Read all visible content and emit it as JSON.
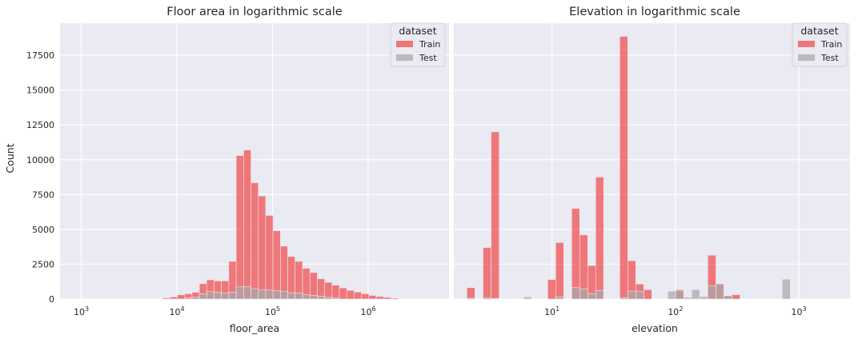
{
  "chart_data": [
    {
      "type": "bar",
      "title": "Floor area in logarithmic scale",
      "xlabel": "floor_area",
      "ylabel": "Count",
      "xscale": "log",
      "xlim": [
        600,
        7000000
      ],
      "ylim": [
        0,
        19800
      ],
      "grid": true,
      "legend": {
        "title": "dataset",
        "placement": "top-right"
      },
      "xticks": [
        {
          "base": "10",
          "exp": "3",
          "value": 1000
        },
        {
          "base": "10",
          "exp": "4",
          "value": 10000
        },
        {
          "base": "10",
          "exp": "5",
          "value": 100000
        },
        {
          "base": "10",
          "exp": "6",
          "value": 1000000
        }
      ],
      "yticks": [
        0,
        2500,
        5000,
        7500,
        10000,
        12500,
        15000,
        17500
      ],
      "series": [
        {
          "name": "Train",
          "color": "#f05050",
          "bins": [
            {
              "x0": 7100,
              "x1": 8500,
              "value": 80
            },
            {
              "x0": 8500,
              "x1": 10150,
              "value": 150
            },
            {
              "x0": 10150,
              "x1": 12100,
              "value": 300
            },
            {
              "x0": 12100,
              "x1": 14400,
              "value": 380
            },
            {
              "x0": 14400,
              "x1": 17200,
              "value": 480
            },
            {
              "x0": 17200,
              "x1": 20500,
              "value": 1100
            },
            {
              "x0": 20500,
              "x1": 24500,
              "value": 1380
            },
            {
              "x0": 24500,
              "x1": 29200,
              "value": 1300
            },
            {
              "x0": 29200,
              "x1": 34900,
              "value": 1300
            },
            {
              "x0": 34900,
              "x1": 41700,
              "value": 2700
            },
            {
              "x0": 41700,
              "x1": 49800,
              "value": 10300
            },
            {
              "x0": 49800,
              "x1": 59500,
              "value": 10700
            },
            {
              "x0": 59500,
              "x1": 71000,
              "value": 8350
            },
            {
              "x0": 71000,
              "x1": 84700,
              "value": 7400
            },
            {
              "x0": 84700,
              "x1": 101200,
              "value": 6000
            },
            {
              "x0": 101200,
              "x1": 121000,
              "value": 4900
            },
            {
              "x0": 121000,
              "x1": 144000,
              "value": 3800
            },
            {
              "x0": 144000,
              "x1": 172000,
              "value": 3050
            },
            {
              "x0": 172000,
              "x1": 206000,
              "value": 2700
            },
            {
              "x0": 206000,
              "x1": 246000,
              "value": 2200
            },
            {
              "x0": 246000,
              "x1": 294000,
              "value": 1900
            },
            {
              "x0": 294000,
              "x1": 351000,
              "value": 1450
            },
            {
              "x0": 351000,
              "x1": 419000,
              "value": 1200
            },
            {
              "x0": 419000,
              "x1": 500000,
              "value": 1000
            },
            {
              "x0": 500000,
              "x1": 597000,
              "value": 800
            },
            {
              "x0": 597000,
              "x1": 713000,
              "value": 620
            },
            {
              "x0": 713000,
              "x1": 851000,
              "value": 500
            },
            {
              "x0": 851000,
              "x1": 1017000,
              "value": 380
            },
            {
              "x0": 1017000,
              "x1": 1214000,
              "value": 260
            },
            {
              "x0": 1214000,
              "x1": 1450000,
              "value": 180
            },
            {
              "x0": 1450000,
              "x1": 1730000,
              "value": 120
            },
            {
              "x0": 1730000,
              "x1": 2070000,
              "value": 70
            }
          ]
        },
        {
          "name": "Test",
          "color": "#a9a9a9",
          "bins": [
            {
              "x0": 12100,
              "x1": 14400,
              "value": 80
            },
            {
              "x0": 14400,
              "x1": 17200,
              "value": 150
            },
            {
              "x0": 17200,
              "x1": 20500,
              "value": 370
            },
            {
              "x0": 20500,
              "x1": 24500,
              "value": 530
            },
            {
              "x0": 24500,
              "x1": 29200,
              "value": 500
            },
            {
              "x0": 29200,
              "x1": 34900,
              "value": 420
            },
            {
              "x0": 34900,
              "x1": 41700,
              "value": 500
            },
            {
              "x0": 41700,
              "x1": 49800,
              "value": 870
            },
            {
              "x0": 49800,
              "x1": 59500,
              "value": 880
            },
            {
              "x0": 59500,
              "x1": 71000,
              "value": 750
            },
            {
              "x0": 71000,
              "x1": 84700,
              "value": 650
            },
            {
              "x0": 84700,
              "x1": 101200,
              "value": 650
            },
            {
              "x0": 101200,
              "x1": 121000,
              "value": 600
            },
            {
              "x0": 121000,
              "x1": 144000,
              "value": 560
            },
            {
              "x0": 144000,
              "x1": 172000,
              "value": 450
            },
            {
              "x0": 172000,
              "x1": 206000,
              "value": 420
            },
            {
              "x0": 206000,
              "x1": 246000,
              "value": 320
            },
            {
              "x0": 246000,
              "x1": 294000,
              "value": 260
            },
            {
              "x0": 294000,
              "x1": 351000,
              "value": 200
            },
            {
              "x0": 351000,
              "x1": 419000,
              "value": 120
            },
            {
              "x0": 419000,
              "x1": 500000,
              "value": 80
            }
          ]
        }
      ]
    },
    {
      "type": "bar",
      "title": "Elevation in logarithmic scale",
      "xlabel": "elevation",
      "ylabel": "",
      "xscale": "log",
      "xlim": [
        1.6,
        2600
      ],
      "ylim": [
        0,
        19800
      ],
      "grid": true,
      "legend": {
        "title": "dataset",
        "placement": "top-right"
      },
      "xticks": [
        {
          "base": "10",
          "exp": "1",
          "value": 10
        },
        {
          "base": "10",
          "exp": "2",
          "value": 100
        },
        {
          "base": "10",
          "exp": "3",
          "value": 1000
        }
      ],
      "yticks": [
        0,
        2500,
        5000,
        7500,
        10000,
        12500,
        15000,
        17500
      ],
      "series": [
        {
          "name": "Train",
          "color": "#f05050",
          "bins": [
            {
              "x0": 2.04,
              "x1": 2.37,
              "value": 820
            },
            {
              "x0": 2.76,
              "x1": 3.21,
              "value": 3700
            },
            {
              "x0": 3.21,
              "x1": 3.73,
              "value": 12000
            },
            {
              "x0": 9.24,
              "x1": 10.71,
              "value": 1400
            },
            {
              "x0": 10.71,
              "x1": 12.44,
              "value": 4050
            },
            {
              "x0": 14.44,
              "x1": 16.76,
              "value": 6500
            },
            {
              "x0": 16.76,
              "x1": 19.46,
              "value": 4600
            },
            {
              "x0": 19.46,
              "x1": 22.6,
              "value": 2400
            },
            {
              "x0": 22.6,
              "x1": 26.2,
              "value": 8750
            },
            {
              "x0": 35.4,
              "x1": 41.1,
              "value": 18850
            },
            {
              "x0": 41.1,
              "x1": 47.7,
              "value": 2750
            },
            {
              "x0": 47.7,
              "x1": 55.4,
              "value": 1080
            },
            {
              "x0": 55.4,
              "x1": 64.4,
              "value": 670
            },
            {
              "x0": 100.6,
              "x1": 116.8,
              "value": 680
            },
            {
              "x0": 183,
              "x1": 213,
              "value": 3150
            },
            {
              "x0": 213,
              "x1": 247,
              "value": 1050
            },
            {
              "x0": 247,
              "x1": 287,
              "value": 200
            },
            {
              "x0": 287,
              "x1": 334,
              "value": 310
            }
          ]
        },
        {
          "name": "Test",
          "color": "#a9a9a9",
          "bins": [
            {
              "x0": 2.04,
              "x1": 2.37,
              "value": 60
            },
            {
              "x0": 2.76,
              "x1": 3.21,
              "value": 80
            },
            {
              "x0": 3.21,
              "x1": 3.73,
              "value": 40
            },
            {
              "x0": 5.9,
              "x1": 6.85,
              "value": 150
            },
            {
              "x0": 10.71,
              "x1": 12.44,
              "value": 160
            },
            {
              "x0": 14.44,
              "x1": 16.76,
              "value": 820
            },
            {
              "x0": 16.76,
              "x1": 19.46,
              "value": 720
            },
            {
              "x0": 19.46,
              "x1": 22.6,
              "value": 390
            },
            {
              "x0": 22.6,
              "x1": 26.2,
              "value": 600
            },
            {
              "x0": 35.4,
              "x1": 41.1,
              "value": 100
            },
            {
              "x0": 41.1,
              "x1": 47.7,
              "value": 570
            },
            {
              "x0": 47.7,
              "x1": 55.4,
              "value": 540
            },
            {
              "x0": 86.6,
              "x1": 100.6,
              "value": 560
            },
            {
              "x0": 100.6,
              "x1": 116.8,
              "value": 620
            },
            {
              "x0": 116.8,
              "x1": 135.6,
              "value": 120
            },
            {
              "x0": 135.6,
              "x1": 157.5,
              "value": 680
            },
            {
              "x0": 157.5,
              "x1": 183,
              "value": 180
            },
            {
              "x0": 183,
              "x1": 213,
              "value": 950
            },
            {
              "x0": 213,
              "x1": 247,
              "value": 1100
            },
            {
              "x0": 247,
              "x1": 287,
              "value": 250
            },
            {
              "x0": 734,
              "x1": 852,
              "value": 1420
            }
          ]
        }
      ]
    }
  ]
}
